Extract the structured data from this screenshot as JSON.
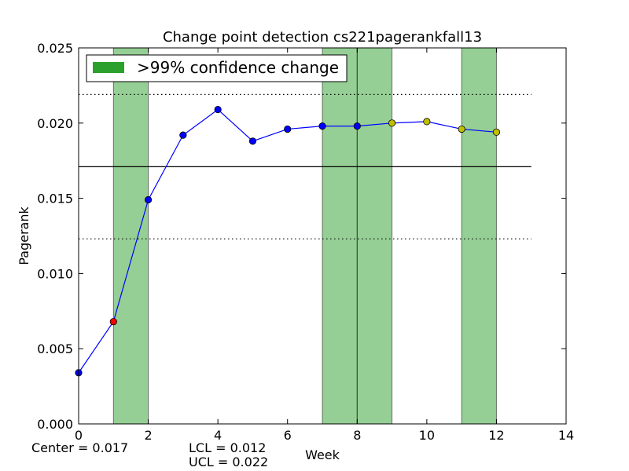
{
  "chart_data": {
    "type": "line",
    "title": "Change point detection cs221pagerankfall13",
    "xlabel": "Week",
    "ylabel": "Pagerank",
    "xlim": [
      0,
      14
    ],
    "ylim": [
      0,
      0.025
    ],
    "xticks": [
      0,
      2,
      4,
      6,
      8,
      10,
      12,
      14
    ],
    "xtick_labels": [
      "0",
      "2",
      "4",
      "6",
      "8",
      "10",
      "12",
      "14"
    ],
    "yticks": [
      0.0,
      0.005,
      0.01,
      0.015,
      0.02,
      0.025
    ],
    "ytick_labels": [
      "0.000",
      "0.005",
      "0.010",
      "0.015",
      "0.020",
      "0.025"
    ],
    "grid": false,
    "series": [
      {
        "x": [
          0,
          1,
          2,
          3,
          4,
          5,
          6,
          7,
          8,
          9,
          10,
          11,
          12
        ],
        "values": [
          0.0034,
          0.0068,
          0.0149,
          0.0192,
          0.0209,
          0.0188,
          0.0196,
          0.0198,
          0.0198,
          0.02,
          0.0201,
          0.0196,
          0.0194
        ],
        "line_color": "#0000ff",
        "marker_colors": [
          "#0000ff",
          "#ff0000",
          "#0000ff",
          "#0000ff",
          "#0000ff",
          "#0000ff",
          "#0000ff",
          "#0000ff",
          "#0000ff",
          "#bfbf00",
          "#bfbf00",
          "#bfbf00",
          "#bfbf00"
        ]
      }
    ],
    "center": 0.0171,
    "ucl": 0.0219,
    "lcl": 0.0123,
    "control_line_xrange": [
      0,
      13
    ],
    "change_regions": [
      [
        1,
        2
      ],
      [
        7,
        8
      ],
      [
        8,
        9
      ],
      [
        11,
        12
      ]
    ],
    "change_region_color": "#2ca02c",
    "legend": {
      "label": ">99% confidence change",
      "position": "top-left"
    },
    "annotations": {
      "center": "Center = 0.017",
      "lcl": "LCL = 0.012",
      "ucl": "UCL = 0.022"
    }
  }
}
